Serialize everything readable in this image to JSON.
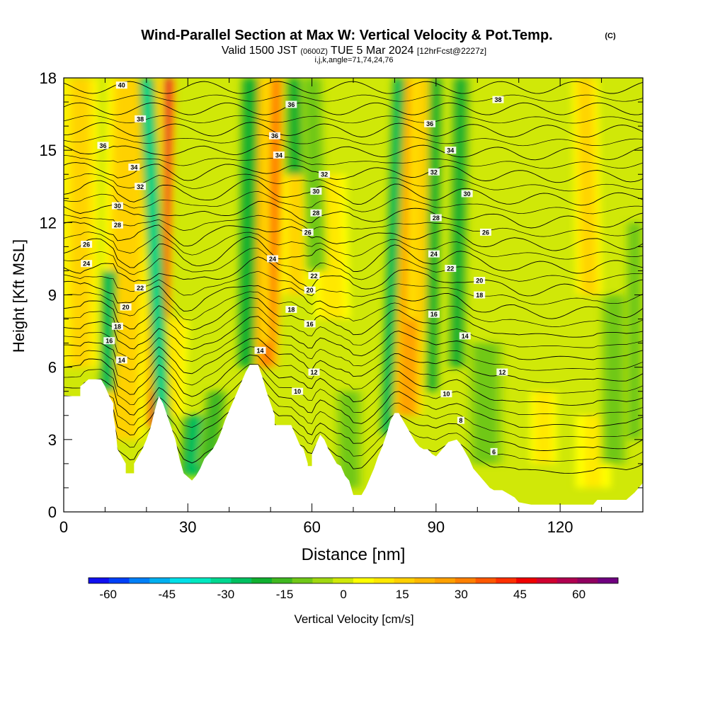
{
  "chart_data": {
    "type": "heatmap",
    "title": "Wind-Parallel Section at Max W: Vertical Velocity & Pot.Temp.",
    "title_mark": "(C)",
    "subtitle_prefix": "Valid 1500 JST",
    "subtitle_zulu": "(0600Z)",
    "subtitle_date": "TUE 5 Mar 2024",
    "subtitle_fcst": "[12hrFcst@2227z]",
    "subtitle2": "i,j,k,angle=71,74,24,76",
    "xlabel": "Distance [nm]",
    "ylabel": "Height [Kft MSL]",
    "xlim": [
      0,
      140
    ],
    "ylim": [
      0,
      18
    ],
    "x_ticks": [
      "0",
      "30",
      "60",
      "90",
      "120"
    ],
    "y_ticks": [
      "0",
      "3",
      "6",
      "9",
      "12",
      "15",
      "18"
    ],
    "colorbar": {
      "label": "Vertical Velocity [cm/s]",
      "range": [
        -65,
        70
      ],
      "tick_labels": [
        "-60",
        "-45",
        "-30",
        "-15",
        "0",
        "15",
        "30",
        "45",
        "60"
      ],
      "colors": [
        "#1010f0",
        "#0040f8",
        "#0080f8",
        "#00b0f0",
        "#00e0e8",
        "#00e8c0",
        "#00d890",
        "#00c060",
        "#10b030",
        "#40b820",
        "#70c818",
        "#a0d810",
        "#d0e808",
        "#ffff00",
        "#ffe800",
        "#ffd000",
        "#ffb800",
        "#ffa000",
        "#ff8000",
        "#ff5800",
        "#ff3000",
        "#f00000",
        "#d00030",
        "#b00050",
        "#900060",
        "#700080"
      ]
    },
    "terrain_kft": [
      [
        0,
        4.8
      ],
      [
        4,
        4.8
      ],
      [
        4,
        5.2
      ],
      [
        6,
        5.5
      ],
      [
        9,
        5.5
      ],
      [
        10,
        5.2
      ],
      [
        11,
        4.8
      ],
      [
        12,
        4.5
      ],
      [
        12,
        4.0
      ],
      [
        12.5,
        3.5
      ],
      [
        13,
        2.6
      ],
      [
        14,
        2.3
      ],
      [
        15,
        2.0
      ],
      [
        15,
        1.6
      ],
      [
        17,
        1.6
      ],
      [
        17,
        2.0
      ],
      [
        18,
        2.3
      ],
      [
        19,
        2.6
      ],
      [
        20,
        3.0
      ],
      [
        21,
        3.5
      ],
      [
        22,
        4.2
      ],
      [
        23,
        4.8
      ],
      [
        24,
        4.5
      ],
      [
        25,
        4.0
      ],
      [
        26,
        3.5
      ],
      [
        27,
        3.0
      ],
      [
        28,
        2.2
      ],
      [
        29,
        1.6
      ],
      [
        31,
        1.3
      ],
      [
        32,
        1.5
      ],
      [
        33,
        1.8
      ],
      [
        34,
        2.2
      ],
      [
        36,
        2.6
      ],
      [
        37,
        2.9
      ],
      [
        38,
        3.3
      ],
      [
        39,
        3.8
      ],
      [
        40,
        4.2
      ],
      [
        41,
        4.6
      ],
      [
        42,
        5.0
      ],
      [
        43,
        5.4
      ],
      [
        44,
        5.8
      ],
      [
        45,
        6.1
      ],
      [
        47,
        6.1
      ],
      [
        48,
        5.6
      ],
      [
        49,
        5.0
      ],
      [
        50,
        4.5
      ],
      [
        51,
        4.0
      ],
      [
        51,
        3.6
      ],
      [
        55,
        3.6
      ],
      [
        56,
        3.2
      ],
      [
        57,
        2.8
      ],
      [
        58,
        2.6
      ],
      [
        59,
        2.0
      ],
      [
        59,
        1.9
      ],
      [
        60,
        1.9
      ],
      [
        60,
        2.4
      ],
      [
        61,
        2.8
      ],
      [
        62,
        3.2
      ],
      [
        63,
        3.0
      ],
      [
        64,
        2.6
      ],
      [
        65,
        2.3
      ],
      [
        66,
        2.0
      ],
      [
        67,
        1.9
      ],
      [
        68,
        1.5
      ],
      [
        69,
        1.3
      ],
      [
        70,
        0.7
      ],
      [
        72,
        0.7
      ],
      [
        73,
        1.0
      ],
      [
        74,
        1.4
      ],
      [
        75,
        1.8
      ],
      [
        76,
        2.3
      ],
      [
        77,
        2.7
      ],
      [
        78,
        3.2
      ],
      [
        79,
        3.8
      ],
      [
        80,
        4.1
      ],
      [
        81,
        4.1
      ],
      [
        82,
        3.8
      ],
      [
        83,
        3.5
      ],
      [
        84,
        3.2
      ],
      [
        85,
        2.9
      ],
      [
        86,
        2.7
      ],
      [
        87,
        2.6
      ],
      [
        88,
        2.6
      ],
      [
        89,
        2.4
      ],
      [
        90,
        2.3
      ],
      [
        91,
        2.5
      ],
      [
        92,
        2.7
      ],
      [
        93,
        2.9
      ],
      [
        95,
        3.0
      ],
      [
        96,
        2.8
      ],
      [
        97,
        2.5
      ],
      [
        98,
        2.2
      ],
      [
        99,
        1.8
      ],
      [
        100,
        1.6
      ],
      [
        101,
        1.4
      ],
      [
        102,
        1.2
      ],
      [
        103,
        1.0
      ],
      [
        104,
        0.9
      ],
      [
        106,
        0.9
      ],
      [
        107,
        0.8
      ],
      [
        108,
        0.7
      ],
      [
        109,
        0.6
      ],
      [
        110,
        0.4
      ],
      [
        113,
        0.3
      ],
      [
        128,
        0.3
      ],
      [
        129,
        0.5
      ],
      [
        132,
        0.5
      ],
      [
        136,
        0.5
      ],
      [
        138,
        0.8
      ],
      [
        139,
        1.0
      ],
      [
        140,
        1.2
      ]
    ],
    "updraft_bands": [
      {
        "x_base": 22.5,
        "x_top": 24.5,
        "y_base": 3.5,
        "y_top": 18,
        "w": 62,
        "width": 2.4
      },
      {
        "x_base": 21,
        "x_top": 21,
        "y_base": 5,
        "y_top": 18,
        "w": 22,
        "width": 3.0
      },
      {
        "x_base": 14,
        "x_top": 16,
        "y_base": 3,
        "y_top": 18,
        "w": 20,
        "width": 5
      },
      {
        "x_base": 4,
        "x_top": 4,
        "y_base": 6,
        "y_top": 18,
        "w": 18,
        "width": 4
      },
      {
        "x_base": 49,
        "x_top": 52,
        "y_base": 6,
        "y_top": 18,
        "w": 40,
        "width": 2.6
      },
      {
        "x_base": 47,
        "x_top": 47,
        "y_base": 7,
        "y_top": 18,
        "w": 22,
        "width": 2.4
      },
      {
        "x_base": 56,
        "x_top": 56,
        "y_base": 9,
        "y_top": 18,
        "w": 18,
        "width": 3
      },
      {
        "x_base": 83,
        "x_top": 85,
        "y_base": 4,
        "y_top": 18,
        "w": 28,
        "width": 3.5
      },
      {
        "x_base": 86,
        "x_top": 87,
        "y_base": 8,
        "y_top": 18,
        "w": 20,
        "width": 2.5
      },
      {
        "x_base": 127,
        "x_top": 126,
        "y_base": 9,
        "y_top": 18,
        "w": 18,
        "width": 3
      },
      {
        "x_base": 65,
        "x_top": 64,
        "y_base": 8,
        "y_top": 14,
        "w": 15,
        "width": 4
      },
      {
        "x_base": 26,
        "x_top": 27,
        "y_base": 4,
        "y_top": 8,
        "w": 14,
        "width": 3
      },
      {
        "x_base": 116,
        "x_top": 116,
        "y_base": 2,
        "y_top": 5,
        "w": 12,
        "width": 3
      },
      {
        "x_base": 128,
        "x_top": 128,
        "y_base": 1,
        "y_top": 4,
        "w": 10,
        "width": 4
      }
    ],
    "downdraft_bands": [
      {
        "x_base": 24,
        "x_top": 20,
        "y_base": 3.5,
        "y_top": 18,
        "w": -35,
        "width": 1.8
      },
      {
        "x_base": 10.5,
        "x_top": 11,
        "y_base": 5,
        "y_top": 10,
        "w": -30,
        "width": 1.8
      },
      {
        "x_base": 44,
        "x_top": 45,
        "y_base": 6,
        "y_top": 18,
        "w": -28,
        "width": 2.0
      },
      {
        "x_base": 56,
        "x_top": 56,
        "y_base": 14,
        "y_top": 18,
        "w": -25,
        "width": 2.5
      },
      {
        "x_base": 61,
        "x_top": 60,
        "y_base": 10,
        "y_top": 18,
        "w": -15,
        "width": 2.5
      },
      {
        "x_base": 31,
        "x_top": 32,
        "y_base": 1.5,
        "y_top": 4,
        "w": -30,
        "width": 3
      },
      {
        "x_base": 78,
        "x_top": 81,
        "y_base": 3.2,
        "y_top": 18,
        "w": -30,
        "width": 1.5
      },
      {
        "x_base": 89,
        "x_top": 90,
        "y_base": 5,
        "y_top": 18,
        "w": -25,
        "width": 1.6
      },
      {
        "x_base": 95,
        "x_top": 96,
        "y_base": 6,
        "y_top": 18,
        "w": -22,
        "width": 2.2
      },
      {
        "x_base": 35,
        "x_top": 37,
        "y_base": 2.0,
        "y_top": 5,
        "w": -20,
        "width": 2.5
      },
      {
        "x_base": 69,
        "x_top": 69,
        "y_base": 1,
        "y_top": 5,
        "w": -15,
        "width": 3
      },
      {
        "x_base": 102,
        "x_top": 102,
        "y_base": 2,
        "y_top": 7,
        "w": -12,
        "width": 4
      },
      {
        "x_base": 133,
        "x_top": 133,
        "y_base": 2,
        "y_top": 9,
        "w": -14,
        "width": 3
      },
      {
        "x_base": 138,
        "x_top": 138,
        "y_base": 3,
        "y_top": 12,
        "w": -15,
        "width": 2
      }
    ],
    "theta_contour_levels": [
      6,
      8,
      10,
      12,
      14,
      16,
      18,
      20,
      22,
      24,
      26,
      28,
      30,
      32,
      34,
      36,
      38,
      40
    ],
    "theta_contour_labels": [
      {
        "text": "40",
        "x": 14,
        "y": 17.7
      },
      {
        "text": "38",
        "x": 18.5,
        "y": 16.3
      },
      {
        "text": "36",
        "x": 9.5,
        "y": 15.2
      },
      {
        "text": "34",
        "x": 17,
        "y": 14.3
      },
      {
        "text": "32",
        "x": 18.5,
        "y": 13.5
      },
      {
        "text": "30",
        "x": 13,
        "y": 12.7
      },
      {
        "text": "28",
        "x": 13,
        "y": 11.9
      },
      {
        "text": "26",
        "x": 5.5,
        "y": 11.1
      },
      {
        "text": "24",
        "x": 5.5,
        "y": 10.3
      },
      {
        "text": "22",
        "x": 18.5,
        "y": 9.3
      },
      {
        "text": "20",
        "x": 15,
        "y": 8.5
      },
      {
        "text": "18",
        "x": 13,
        "y": 7.7
      },
      {
        "text": "16",
        "x": 11,
        "y": 7.1
      },
      {
        "text": "14",
        "x": 14,
        "y": 6.3
      },
      {
        "text": "36",
        "x": 55,
        "y": 16.9
      },
      {
        "text": "36",
        "x": 51,
        "y": 15.6
      },
      {
        "text": "34",
        "x": 52,
        "y": 14.8
      },
      {
        "text": "32",
        "x": 63,
        "y": 14.0
      },
      {
        "text": "30",
        "x": 61,
        "y": 13.3
      },
      {
        "text": "28",
        "x": 61,
        "y": 12.4
      },
      {
        "text": "26",
        "x": 59,
        "y": 11.6
      },
      {
        "text": "24",
        "x": 50.5,
        "y": 10.5
      },
      {
        "text": "22",
        "x": 60.5,
        "y": 9.8
      },
      {
        "text": "20",
        "x": 59.5,
        "y": 9.2
      },
      {
        "text": "18",
        "x": 55,
        "y": 8.4
      },
      {
        "text": "16",
        "x": 59.5,
        "y": 7.8
      },
      {
        "text": "14",
        "x": 47.5,
        "y": 6.7
      },
      {
        "text": "12",
        "x": 60.5,
        "y": 5.8
      },
      {
        "text": "10",
        "x": 56.5,
        "y": 5.0
      },
      {
        "text": "38",
        "x": 105,
        "y": 17.1
      },
      {
        "text": "36",
        "x": 88.5,
        "y": 16.1
      },
      {
        "text": "34",
        "x": 93.5,
        "y": 15.0
      },
      {
        "text": "32",
        "x": 89.5,
        "y": 14.1
      },
      {
        "text": "30",
        "x": 97.5,
        "y": 13.2
      },
      {
        "text": "28",
        "x": 90,
        "y": 12.2
      },
      {
        "text": "26",
        "x": 102,
        "y": 11.6
      },
      {
        "text": "24",
        "x": 89.5,
        "y": 10.7
      },
      {
        "text": "22",
        "x": 93.5,
        "y": 10.1
      },
      {
        "text": "20",
        "x": 100.5,
        "y": 9.6
      },
      {
        "text": "18",
        "x": 100.5,
        "y": 9.0
      },
      {
        "text": "16",
        "x": 89.5,
        "y": 8.2
      },
      {
        "text": "14",
        "x": 97,
        "y": 7.3
      },
      {
        "text": "12",
        "x": 106,
        "y": 5.8
      },
      {
        "text": "10",
        "x": 92.5,
        "y": 4.9
      },
      {
        "text": "8",
        "x": 96,
        "y": 3.8
      },
      {
        "text": "6",
        "x": 104,
        "y": 2.5
      }
    ],
    "grid": false,
    "legend": "bottom"
  }
}
